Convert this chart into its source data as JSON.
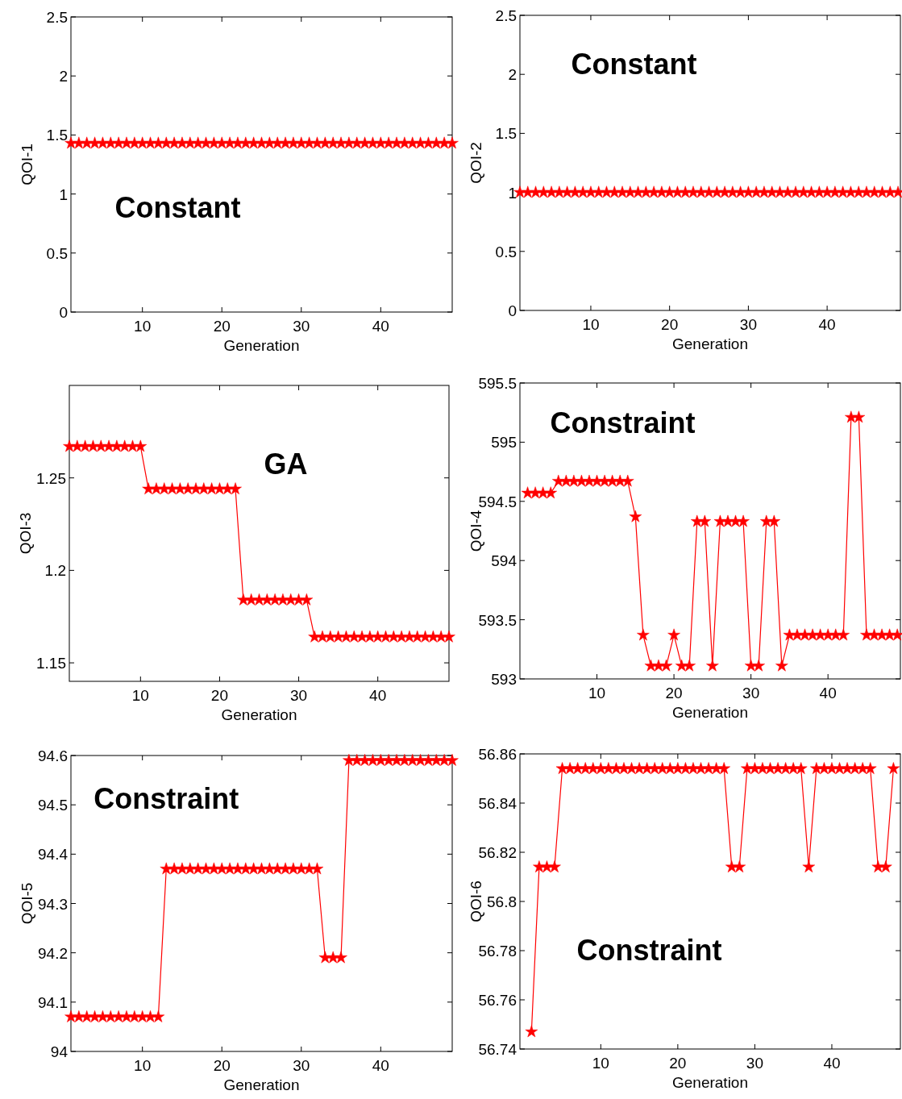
{
  "chart_data": [
    {
      "type": "line",
      "xlabel": "Generation",
      "ylabel": "QOI-1",
      "color": "#ff0000",
      "marker": "star",
      "annotations": [
        "Constant"
      ],
      "xlim": [
        1,
        49
      ],
      "xticks": [
        10,
        20,
        30,
        40
      ],
      "ylim": [
        0,
        2.5
      ],
      "yticks": [
        0,
        0.5,
        1,
        1.5,
        2,
        2.5
      ],
      "x": [
        1,
        2,
        3,
        4,
        5,
        6,
        7,
        8,
        9,
        10,
        11,
        12,
        13,
        14,
        15,
        16,
        17,
        18,
        19,
        20,
        21,
        22,
        23,
        24,
        25,
        26,
        27,
        28,
        29,
        30,
        31,
        32,
        33,
        34,
        35,
        36,
        37,
        38,
        39,
        40,
        41,
        42,
        43,
        44,
        45,
        46,
        47,
        48,
        49
      ],
      "values": [
        1.43,
        1.43,
        1.43,
        1.43,
        1.43,
        1.43,
        1.43,
        1.43,
        1.43,
        1.43,
        1.43,
        1.43,
        1.43,
        1.43,
        1.43,
        1.43,
        1.43,
        1.43,
        1.43,
        1.43,
        1.43,
        1.43,
        1.43,
        1.43,
        1.43,
        1.43,
        1.43,
        1.43,
        1.43,
        1.43,
        1.43,
        1.43,
        1.43,
        1.43,
        1.43,
        1.43,
        1.43,
        1.43,
        1.43,
        1.43,
        1.43,
        1.43,
        1.43,
        1.43,
        1.43,
        1.43,
        1.43,
        1.43,
        1.43
      ]
    },
    {
      "type": "line",
      "xlabel": "Generation",
      "ylabel": "QOI-2",
      "color": "#ff0000",
      "marker": "star",
      "annotations": [
        "Constant"
      ],
      "xlim": [
        1,
        49.3
      ],
      "xticks": [
        10,
        20,
        30,
        40
      ],
      "ylim": [
        0,
        2.5
      ],
      "yticks": [
        0,
        0.5,
        1,
        1.5,
        2,
        2.5
      ],
      "x": [
        1,
        2,
        3,
        4,
        5,
        6,
        7,
        8,
        9,
        10,
        11,
        12,
        13,
        14,
        15,
        16,
        17,
        18,
        19,
        20,
        21,
        22,
        23,
        24,
        25,
        26,
        27,
        28,
        29,
        30,
        31,
        32,
        33,
        34,
        35,
        36,
        37,
        38,
        39,
        40,
        41,
        42,
        43,
        44,
        45,
        46,
        47,
        48,
        49
      ],
      "values": [
        1,
        1,
        1,
        1,
        1,
        1,
        1,
        1,
        1,
        1,
        1,
        1,
        1,
        1,
        1,
        1,
        1,
        1,
        1,
        1,
        1,
        1,
        1,
        1,
        1,
        1,
        1,
        1,
        1,
        1,
        1,
        1,
        1,
        1,
        1,
        1,
        1,
        1,
        1,
        1,
        1,
        1,
        1,
        1,
        1,
        1,
        1,
        1,
        1
      ]
    },
    {
      "type": "line",
      "xlabel": "Generation",
      "ylabel": "QOI-3",
      "color": "#ff0000",
      "marker": "star",
      "annotations": [
        "GA"
      ],
      "xlim": [
        1,
        49
      ],
      "xticks": [
        10,
        20,
        30,
        40
      ],
      "ylim": [
        1.14,
        1.3
      ],
      "yticks": [
        1.15,
        1.2,
        1.25
      ],
      "x": [
        1,
        2,
        3,
        4,
        5,
        6,
        7,
        8,
        9,
        10,
        11,
        12,
        13,
        14,
        15,
        16,
        17,
        18,
        19,
        20,
        21,
        22,
        23,
        24,
        25,
        26,
        27,
        28,
        29,
        30,
        31,
        32,
        33,
        34,
        35,
        36,
        37,
        38,
        39,
        40,
        41,
        42,
        43,
        44,
        45,
        46,
        47,
        48,
        49
      ],
      "values": [
        1.267,
        1.267,
        1.267,
        1.267,
        1.267,
        1.267,
        1.267,
        1.267,
        1.267,
        1.267,
        1.244,
        1.244,
        1.244,
        1.244,
        1.244,
        1.244,
        1.244,
        1.244,
        1.244,
        1.244,
        1.244,
        1.244,
        1.184,
        1.184,
        1.184,
        1.184,
        1.184,
        1.184,
        1.184,
        1.184,
        1.184,
        1.164,
        1.164,
        1.164,
        1.164,
        1.164,
        1.164,
        1.164,
        1.164,
        1.164,
        1.164,
        1.164,
        1.164,
        1.164,
        1.164,
        1.164,
        1.164,
        1.164,
        1.164
      ]
    },
    {
      "type": "line",
      "xlabel": "Generation",
      "ylabel": "QOI-4",
      "color": "#ff0000",
      "marker": "star",
      "annotations": [
        "Constraint"
      ],
      "xlim": [
        0,
        49.4
      ],
      "xticks": [
        10,
        20,
        30,
        40
      ],
      "ylim": [
        593,
        595.5
      ],
      "yticks": [
        593,
        593.5,
        594,
        594.5,
        595,
        595.5
      ],
      "x": [
        1,
        2,
        3,
        4,
        5,
        6,
        7,
        8,
        9,
        10,
        11,
        12,
        13,
        14,
        15,
        16,
        17,
        18,
        19,
        20,
        21,
        22,
        23,
        24,
        25,
        26,
        27,
        28,
        29,
        30,
        31,
        32,
        33,
        34,
        35,
        36,
        37,
        38,
        39,
        40,
        41,
        42,
        43,
        44,
        45,
        46,
        47,
        48,
        49
      ],
      "values": [
        594.57,
        594.57,
        594.57,
        594.57,
        594.67,
        594.67,
        594.67,
        594.67,
        594.67,
        594.67,
        594.67,
        594.67,
        594.67,
        594.67,
        594.37,
        593.37,
        593.11,
        593.11,
        593.11,
        593.37,
        593.11,
        593.11,
        594.33,
        594.33,
        593.11,
        594.33,
        594.33,
        594.33,
        594.33,
        593.11,
        593.11,
        594.33,
        594.33,
        593.11,
        593.37,
        593.37,
        593.37,
        593.37,
        593.37,
        593.37,
        593.37,
        593.37,
        595.21,
        595.21,
        593.37,
        593.37,
        593.37,
        593.37,
        593.37
      ]
    },
    {
      "type": "line",
      "xlabel": "Generation",
      "ylabel": "QOI-5",
      "color": "#ff0000",
      "marker": "star",
      "annotations": [
        "Constraint"
      ],
      "xlim": [
        1,
        49
      ],
      "xticks": [
        10,
        20,
        30,
        40
      ],
      "ylim": [
        94,
        94.6
      ],
      "yticks": [
        94,
        94.1,
        94.2,
        94.3,
        94.4,
        94.5,
        94.6
      ],
      "x": [
        1,
        2,
        3,
        4,
        5,
        6,
        7,
        8,
        9,
        10,
        11,
        12,
        13,
        14,
        15,
        16,
        17,
        18,
        19,
        20,
        21,
        22,
        23,
        24,
        25,
        26,
        27,
        28,
        29,
        30,
        31,
        32,
        33,
        34,
        35,
        36,
        37,
        38,
        39,
        40,
        41,
        42,
        43,
        44,
        45,
        46,
        47,
        48,
        49
      ],
      "values": [
        94.07,
        94.07,
        94.07,
        94.07,
        94.07,
        94.07,
        94.07,
        94.07,
        94.07,
        94.07,
        94.07,
        94.07,
        94.37,
        94.37,
        94.37,
        94.37,
        94.37,
        94.37,
        94.37,
        94.37,
        94.37,
        94.37,
        94.37,
        94.37,
        94.37,
        94.37,
        94.37,
        94.37,
        94.37,
        94.37,
        94.37,
        94.37,
        94.19,
        94.19,
        94.19,
        94.59,
        94.59,
        94.59,
        94.59,
        94.59,
        94.59,
        94.59,
        94.59,
        94.59,
        94.59,
        94.59,
        94.59,
        94.59,
        94.59
      ]
    },
    {
      "type": "line",
      "xlabel": "Generation",
      "ylabel": "QOI-6",
      "color": "#ff0000",
      "marker": "star",
      "annotations": [
        "Constraint"
      ],
      "xlim": [
        -0.5,
        48.9
      ],
      "xticks": [
        10,
        20,
        30,
        40
      ],
      "ylim": [
        56.74,
        56.86
      ],
      "yticks": [
        56.74,
        56.76,
        56.78,
        56.8,
        56.82,
        56.84,
        56.86
      ],
      "x": [
        1,
        2,
        3,
        4,
        5,
        6,
        7,
        8,
        9,
        10,
        11,
        12,
        13,
        14,
        15,
        16,
        17,
        18,
        19,
        20,
        21,
        22,
        23,
        24,
        25,
        26,
        27,
        28,
        29,
        30,
        31,
        32,
        33,
        34,
        35,
        36,
        37,
        38,
        39,
        40,
        41,
        42,
        43,
        44,
        45,
        46,
        47,
        48
      ],
      "values": [
        56.747,
        56.814,
        56.814,
        56.814,
        56.854,
        56.854,
        56.854,
        56.854,
        56.854,
        56.854,
        56.854,
        56.854,
        56.854,
        56.854,
        56.854,
        56.854,
        56.854,
        56.854,
        56.854,
        56.854,
        56.854,
        56.854,
        56.854,
        56.854,
        56.854,
        56.854,
        56.814,
        56.814,
        56.854,
        56.854,
        56.854,
        56.854,
        56.854,
        56.854,
        56.854,
        56.854,
        56.814,
        56.854,
        56.854,
        56.854,
        56.854,
        56.854,
        56.854,
        56.854,
        56.854,
        56.814,
        56.814,
        56.854
      ]
    }
  ]
}
